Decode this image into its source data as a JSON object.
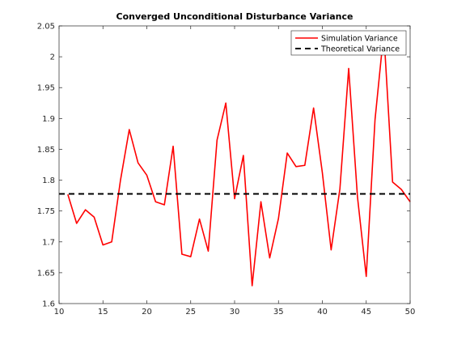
{
  "chart_data": {
    "type": "line",
    "title": "Converged Unconditional Disturbance Variance",
    "xlabel": "",
    "ylabel": "",
    "xlim": [
      10,
      50
    ],
    "ylim": [
      1.6,
      2.05
    ],
    "xticks": [
      10,
      15,
      20,
      25,
      30,
      35,
      40,
      45,
      50
    ],
    "xtick_labels": [
      "10",
      "15",
      "20",
      "25",
      "30",
      "35",
      "40",
      "45",
      "50"
    ],
    "yticks": [
      1.6,
      1.65,
      1.7,
      1.75,
      1.8,
      1.85,
      1.9,
      1.95,
      2.0,
      2.05
    ],
    "ytick_labels": [
      "1.6",
      "1.65",
      "1.7",
      "1.75",
      "1.8",
      "1.85",
      "1.9",
      "1.95",
      "2",
      "2.05"
    ],
    "grid": false,
    "legend_position": "top-right",
    "series": [
      {
        "name": "Simulation Variance",
        "color": "#ff0000",
        "style": "solid",
        "x": [
          11,
          12,
          13,
          14,
          15,
          16,
          17,
          18,
          19,
          20,
          21,
          22,
          23,
          24,
          25,
          26,
          27,
          28,
          29,
          30,
          31,
          32,
          33,
          34,
          35,
          36,
          37,
          38,
          39,
          40,
          41,
          42,
          43,
          44,
          45,
          46,
          47,
          48,
          49,
          50
        ],
        "y": [
          1.777,
          1.73,
          1.752,
          1.74,
          1.695,
          1.7,
          1.8,
          1.882,
          1.828,
          1.808,
          1.765,
          1.76,
          1.855,
          1.68,
          1.676,
          1.737,
          1.685,
          1.865,
          1.925,
          1.77,
          1.84,
          1.629,
          1.765,
          1.674,
          1.738,
          1.844,
          1.822,
          1.824,
          1.917,
          1.812,
          1.687,
          1.786,
          1.981,
          1.773,
          1.644,
          1.898,
          2.04,
          1.797,
          1.785,
          1.765
        ]
      },
      {
        "name": "Theoretical Variance",
        "color": "#000000",
        "style": "dashed",
        "x": [
          10,
          50
        ],
        "y": [
          1.7778,
          1.7778
        ]
      }
    ]
  }
}
